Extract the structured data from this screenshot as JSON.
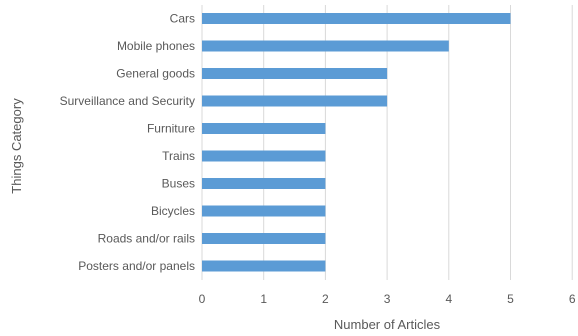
{
  "chart_data": {
    "type": "bar",
    "orientation": "horizontal",
    "categories": [
      "Cars",
      "Mobile phones",
      "General goods",
      "Surveillance and Security",
      "Furniture",
      "Trains",
      "Buses",
      "Bicycles",
      "Roads and/or rails",
      "Posters and/or panels"
    ],
    "values": [
      5,
      4,
      3,
      3,
      2,
      2,
      2,
      2,
      2,
      2
    ],
    "xlabel": "Number of Articles",
    "ylabel": "Things Category",
    "xlim": [
      0,
      6
    ],
    "xticks": [
      "0",
      "1",
      "2",
      "3",
      "4",
      "5",
      "6"
    ],
    "grid": true,
    "bar_color": "#5b9bd5"
  }
}
